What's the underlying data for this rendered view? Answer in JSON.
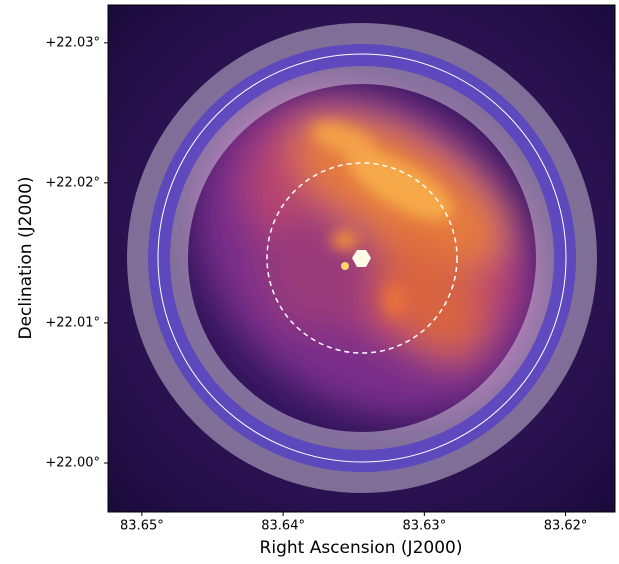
{
  "chart_data": {
    "type": "image",
    "xlabel": "Right Ascension (J2000)",
    "ylabel": "Declination (J2000)",
    "xlim": [
      83.6524,
      83.6165
    ],
    "ylim": [
      21.9965,
      22.0327
    ],
    "xticks": [
      {
        "value": 83.65,
        "label": "83.65°"
      },
      {
        "value": 83.64,
        "label": "83.64°"
      },
      {
        "value": 83.63,
        "label": "83.63°"
      },
      {
        "value": 83.62,
        "label": "83.62°"
      }
    ],
    "yticks": [
      {
        "value": 22.0,
        "label": "+22.00°"
      },
      {
        "value": 22.01,
        "label": "+22.01°"
      },
      {
        "value": 22.02,
        "label": "+22.02°"
      },
      {
        "value": 22.03,
        "label": "+22.03°"
      }
    ]
  }
}
